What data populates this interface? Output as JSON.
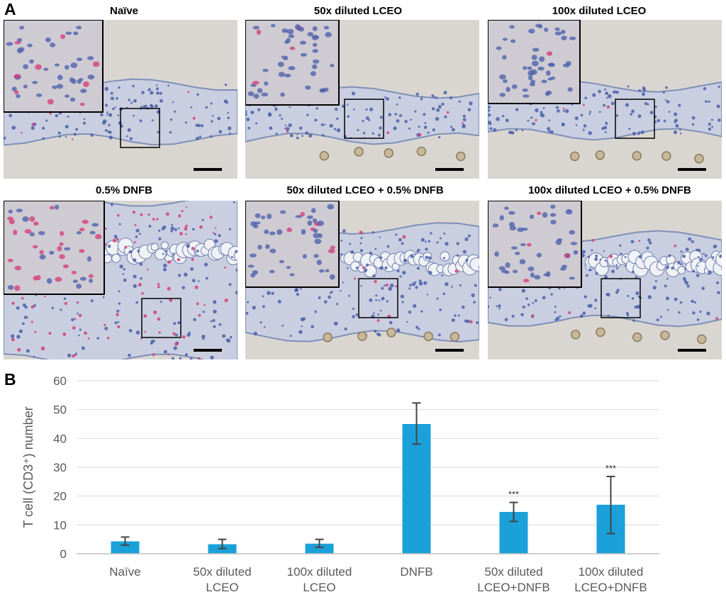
{
  "panel_a": {
    "label": "A",
    "images": [
      {
        "title": "Naïve"
      },
      {
        "title": "50x diluted LCEO"
      },
      {
        "title": "100x diluted LCEO"
      },
      {
        "title": "0.5% DNFB"
      },
      {
        "title": "50x diluted LCEO + 0.5% DNFB"
      },
      {
        "title": "100x diluted LCEO + 0.5% DNFB"
      }
    ]
  },
  "panel_b": {
    "label": "B"
  },
  "chart_data": {
    "type": "bar",
    "title": "",
    "xlabel": "",
    "ylabel": "T cell (CD3⁺) number",
    "ylim": [
      0,
      60
    ],
    "yticks": [
      0,
      10,
      20,
      30,
      40,
      50,
      60
    ],
    "grid": true,
    "categories": [
      [
        "Naïve"
      ],
      [
        "50x diluted",
        "LCEO"
      ],
      [
        "100x diluted",
        "LCEO"
      ],
      [
        "DNFB"
      ],
      [
        "50x diluted",
        "LCEO+DNFB"
      ],
      [
        "100x diluted",
        "LCEO+DNFB"
      ]
    ],
    "values": [
      4.3,
      3.3,
      3.5,
      45,
      14.5,
      17
    ],
    "error_low": [
      3.0,
      1.8,
      2.2,
      38,
      11.2,
      7
    ],
    "error_high": [
      5.8,
      5.0,
      5.0,
      52.3,
      17.8,
      26.8
    ],
    "annotations": [
      "",
      "",
      "",
      "",
      "***",
      "***"
    ],
    "bar_color": "#1ba1d9",
    "error_color": "#444444"
  }
}
